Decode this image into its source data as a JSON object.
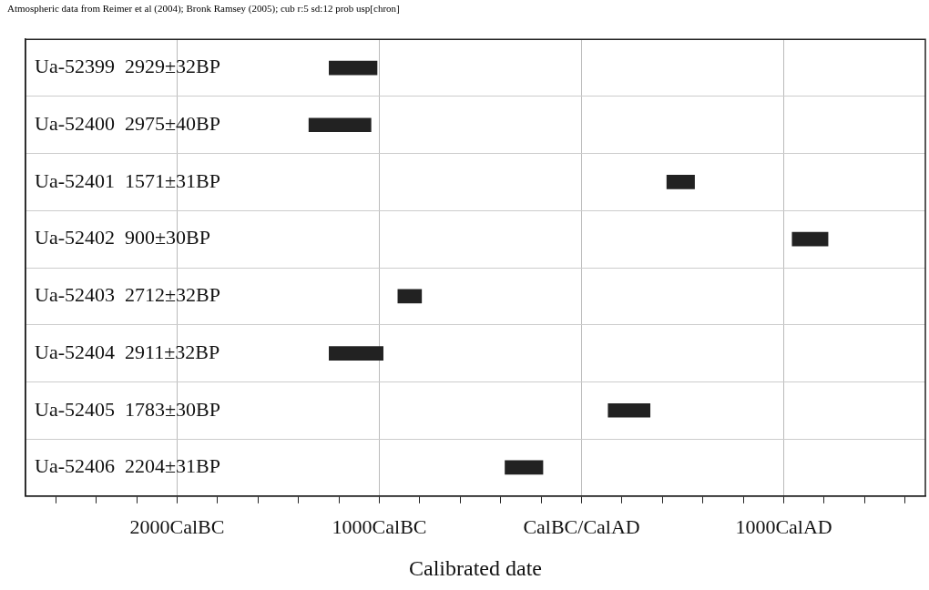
{
  "chart_data": {
    "type": "bar",
    "orientation": "horizontal",
    "title": "Atmospheric data from Reimer et al (2004); Bronk Ramsey (2005); cub r:5 sd:12 prob usp[chron]",
    "xlabel": "Calibrated date",
    "categories": [
      "Ua-52399  2929±32BP",
      "Ua-52400  2975±40BP",
      "Ua-52401  1571±31BP",
      "Ua-52402  900±30BP",
      "Ua-52403  2712±32BP",
      "Ua-52404  2911±32BP",
      "Ua-52405  1783±30BP",
      "Ua-52406  2204±31BP"
    ],
    "base": [
      -1250,
      -1350,
      420,
      1040,
      -910,
      -1250,
      130,
      -380
    ],
    "values": [
      240,
      310,
      140,
      180,
      120,
      270,
      210,
      190
    ],
    "color": "#222222",
    "xlim": [
      -2750,
      1700
    ],
    "xticks": [
      {
        "value": -2600,
        "label": null
      },
      {
        "value": -2400,
        "label": null
      },
      {
        "value": -2200,
        "label": null
      },
      {
        "value": -2000,
        "label": "2000CalBC"
      },
      {
        "value": -1800,
        "label": null
      },
      {
        "value": -1600,
        "label": null
      },
      {
        "value": -1400,
        "label": null
      },
      {
        "value": -1200,
        "label": null
      },
      {
        "value": -1000,
        "label": "1000CalBC"
      },
      {
        "value": -800,
        "label": null
      },
      {
        "value": -600,
        "label": null
      },
      {
        "value": -400,
        "label": null
      },
      {
        "value": -200,
        "label": null
      },
      {
        "value": 0,
        "label": "CalBC/CalAD"
      },
      {
        "value": 200,
        "label": null
      },
      {
        "value": 400,
        "label": null
      },
      {
        "value": 600,
        "label": null
      },
      {
        "value": 800,
        "label": null
      },
      {
        "value": 1000,
        "label": "1000CalAD"
      },
      {
        "value": 1200,
        "label": null
      },
      {
        "value": 1400,
        "label": null
      },
      {
        "value": 1600,
        "label": null
      }
    ],
    "grid": true,
    "legend": false
  }
}
